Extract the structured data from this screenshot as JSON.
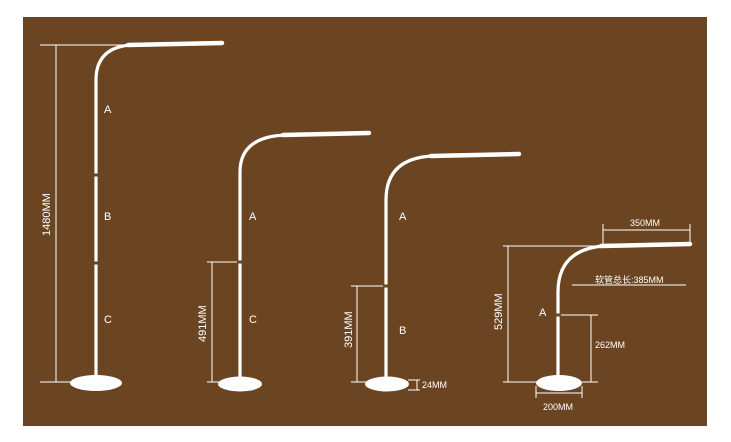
{
  "colors": {
    "background": "#6b4521",
    "lamp": "#ffffff",
    "line": "#ffffff"
  },
  "lamps": [
    {
      "height_label": "1480MM",
      "segments": [
        "A",
        "B",
        "C"
      ]
    },
    {
      "height_label": "491MM",
      "segments": [
        "A",
        "C"
      ]
    },
    {
      "height_label": "391MM",
      "segments": [
        "A",
        "B"
      ],
      "base_label": "24MM"
    },
    {
      "height_label": "529MM",
      "segments": [
        "A"
      ],
      "arm_label": "350MM",
      "hose_label": "软管总长:385MM",
      "pole_label": "262MM",
      "base_label": "200MM"
    }
  ]
}
